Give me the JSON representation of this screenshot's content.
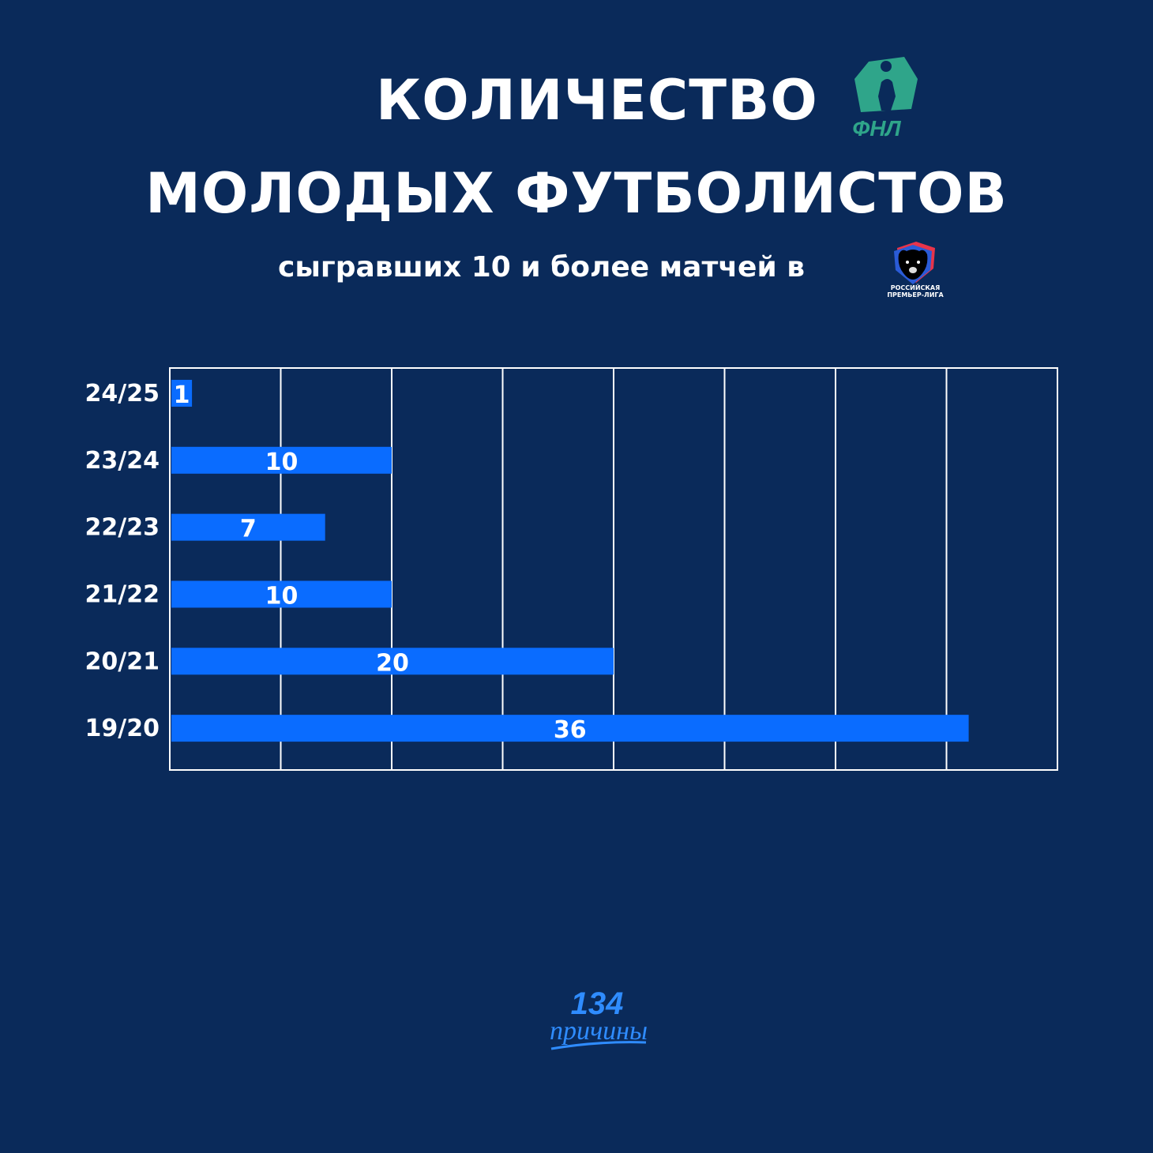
{
  "title": {
    "line1": "КОЛИЧЕСТВО",
    "line2": "МОЛОДЫХ ФУТБОЛИСТОВ",
    "subtitle": "сыгравших 10 и более матчей в"
  },
  "logos": {
    "fnl": {
      "text": "ФНЛ",
      "color": "#2fa58a"
    },
    "rpl": {
      "text_line1": "РОССИЙСКАЯ",
      "text_line2": "ПРЕМЬЕР-ЛИГА"
    },
    "brand": {
      "number": "134",
      "word": "причины",
      "color": "#2f8cff"
    }
  },
  "colors": {
    "background": "#0a2a5a",
    "bar": "#0a6cff",
    "grid": "#ffffff",
    "text": "#ffffff"
  },
  "chart_data": {
    "type": "bar",
    "orientation": "horizontal",
    "categories": [
      "24/25",
      "23/24",
      "22/23",
      "21/22",
      "20/21",
      "19/20"
    ],
    "values": [
      1,
      10,
      7,
      10,
      20,
      36
    ],
    "xlim": [
      0,
      40
    ],
    "grid": true,
    "legend": "none"
  }
}
